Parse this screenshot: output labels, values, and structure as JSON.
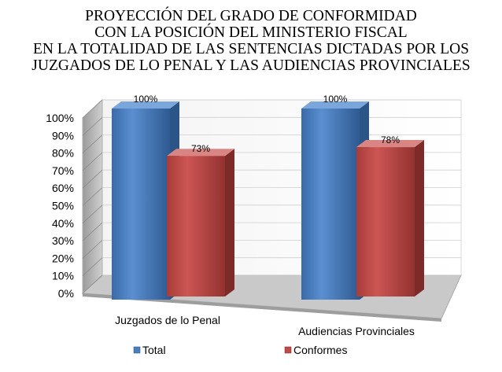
{
  "chart_data": {
    "type": "bar",
    "title_lines": [
      "PROYECCIÓN DEL GRADO DE CONFORMIDAD",
      "CON LA POSICIÓN DEL MINISTERIO FISCAL",
      "EN LA TOTALIDAD DE LAS SENTENCIAS DICTADAS POR LOS",
      "JUZGADOS DE LO PENAL Y LAS AUDIENCIAS PROVINCIALES"
    ],
    "categories": [
      "Juzgados de lo Penal",
      "Audiencias Provinciales"
    ],
    "series": [
      {
        "name": "Total",
        "values": [
          100,
          100
        ],
        "data_labels": [
          "100%",
          "100%"
        ],
        "color": "#4a7ebb"
      },
      {
        "name": "Conformes",
        "values": [
          73,
          78
        ],
        "data_labels": [
          "73%",
          "78%"
        ],
        "color": "#be4b48"
      }
    ],
    "y_ticks": [
      "0%",
      "10%",
      "20%",
      "30%",
      "40%",
      "50%",
      "60%",
      "70%",
      "80%",
      "90%",
      "100%"
    ],
    "ylim": [
      0,
      100
    ],
    "grid": true,
    "legend_position": "bottom",
    "style": "3d-columns"
  }
}
